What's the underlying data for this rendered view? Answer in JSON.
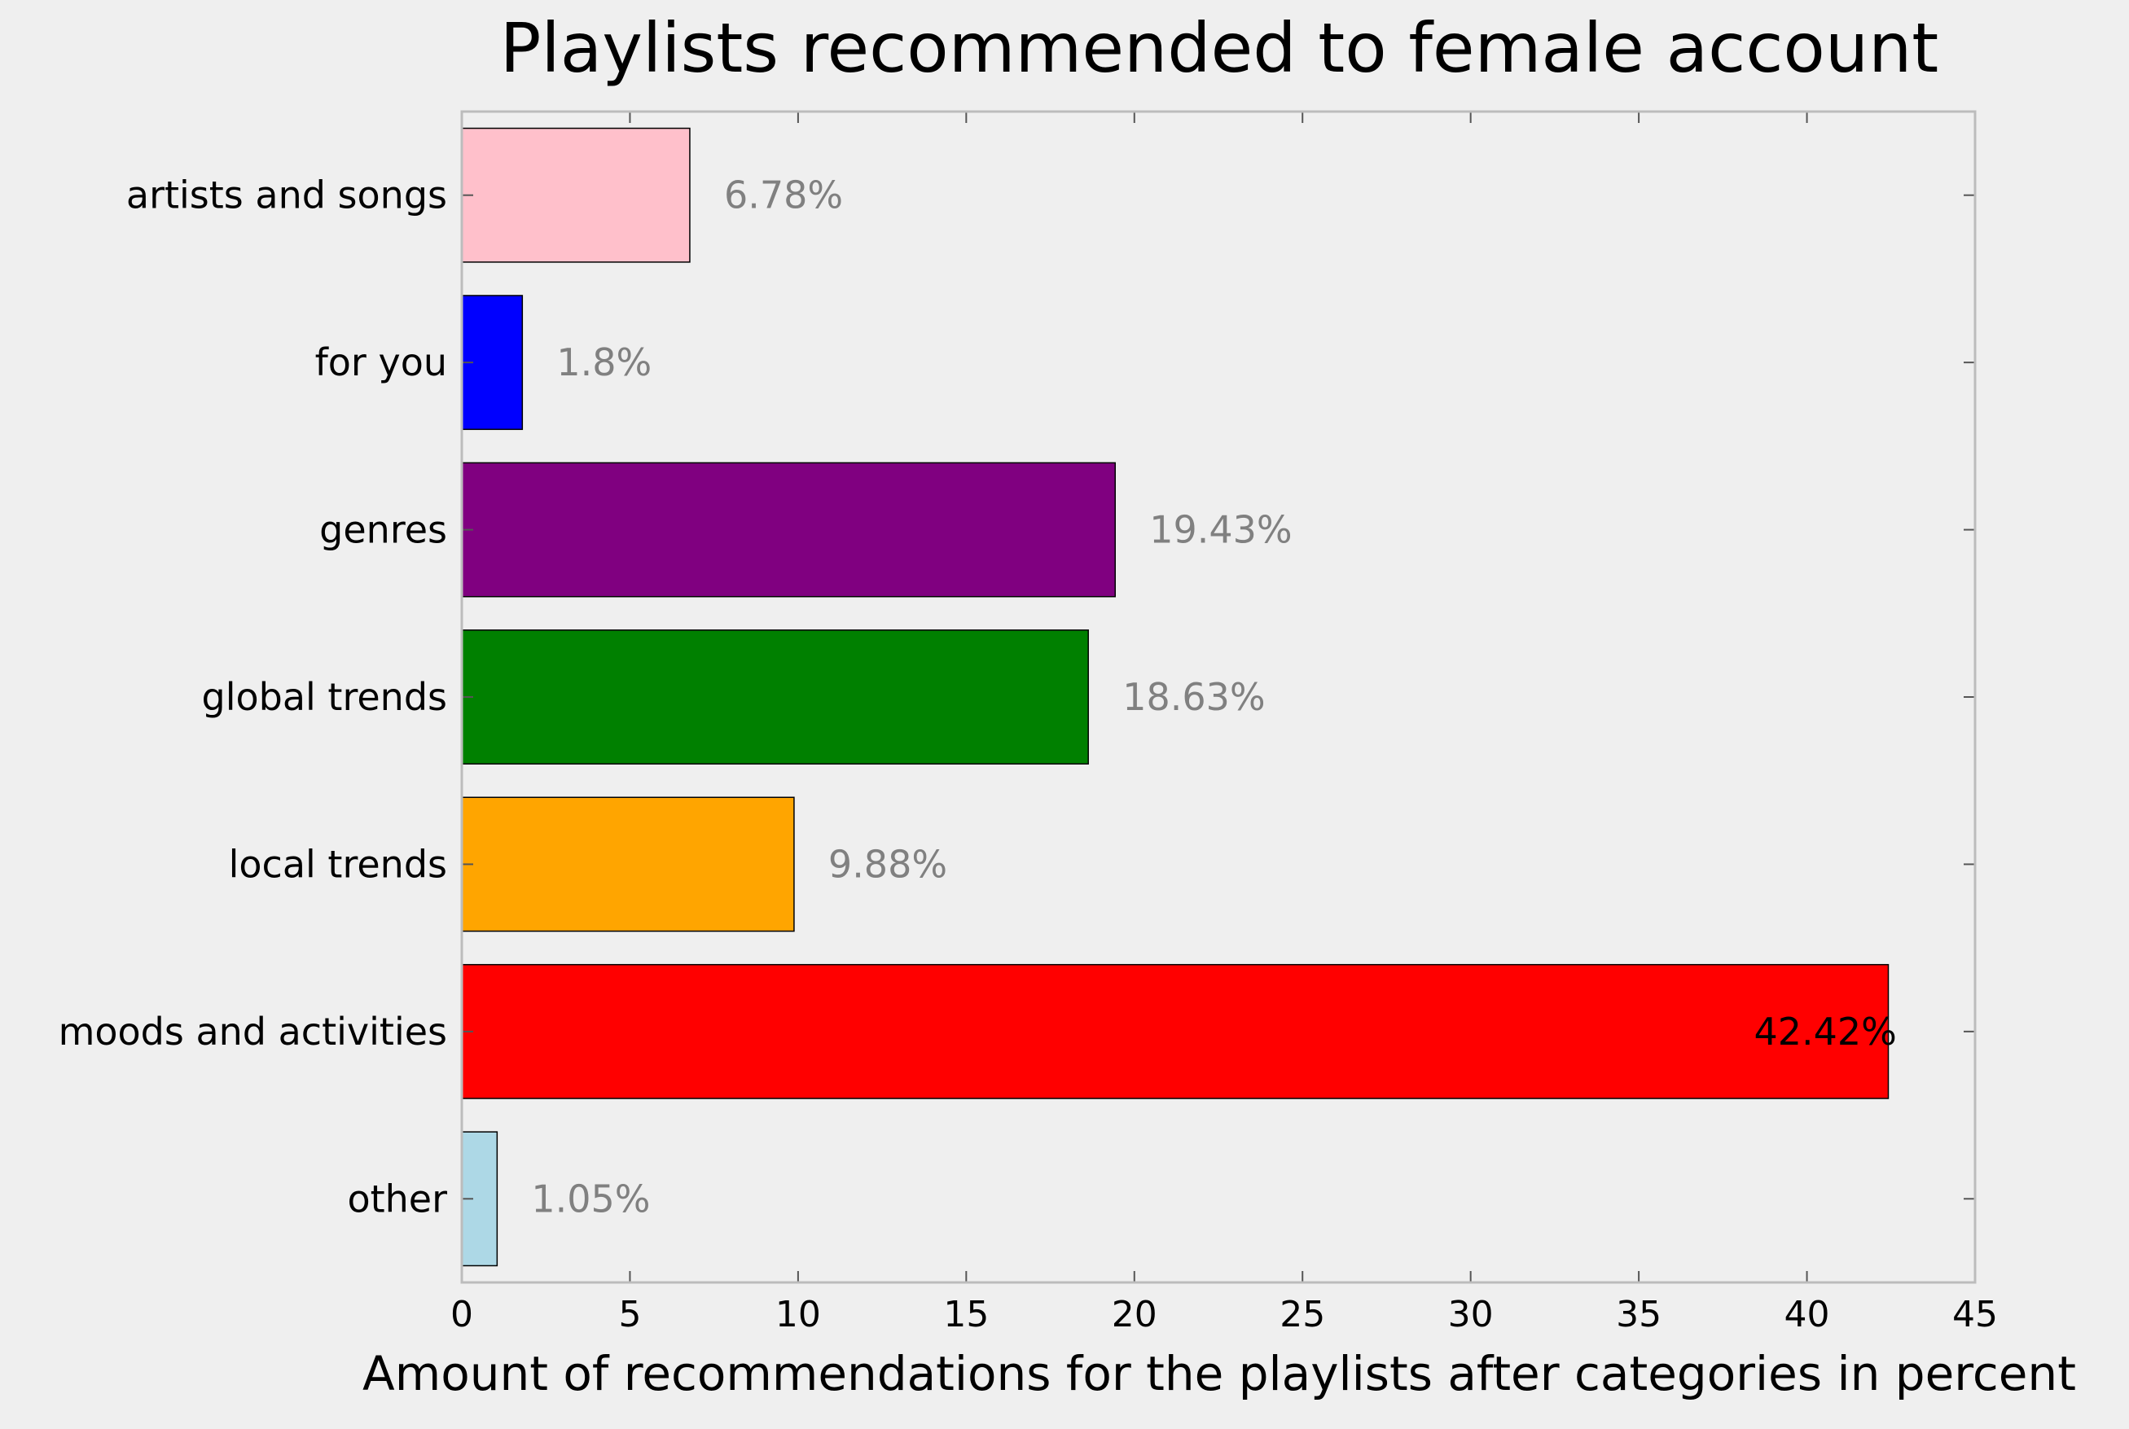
{
  "chart_data": {
    "type": "bar",
    "orientation": "horizontal",
    "title": "Playlists recommended to female account",
    "xlabel": "Amount of recommendations for the playlists after categories in percent",
    "ylabel": "",
    "xlim": [
      0,
      45
    ],
    "xticks": [
      0,
      5,
      10,
      15,
      20,
      25,
      30,
      35,
      40,
      45
    ],
    "grid": false,
    "legend": "none",
    "bars": [
      {
        "category": "artists and songs",
        "value": 6.78,
        "label": "6.78%",
        "color": "#ffc0cb",
        "label_color": "#808080"
      },
      {
        "category": "for you",
        "value": 1.8,
        "label": "1.8%",
        "color": "#0000ff",
        "label_color": "#808080"
      },
      {
        "category": "genres",
        "value": 19.43,
        "label": "19.43%",
        "color": "#800080",
        "label_color": "#808080"
      },
      {
        "category": "global trends",
        "value": 18.63,
        "label": "18.63%",
        "color": "#008000",
        "label_color": "#808080"
      },
      {
        "category": "local trends",
        "value": 9.88,
        "label": "9.88%",
        "color": "#ffa500",
        "label_color": "#808080"
      },
      {
        "category": "moods and activities",
        "value": 42.42,
        "label": "42.42%",
        "color": "#ff0000",
        "label_color": "#000000"
      },
      {
        "category": "other",
        "value": 1.05,
        "label": "1.05%",
        "color": "#add8e6",
        "label_color": "#808080"
      }
    ]
  }
}
